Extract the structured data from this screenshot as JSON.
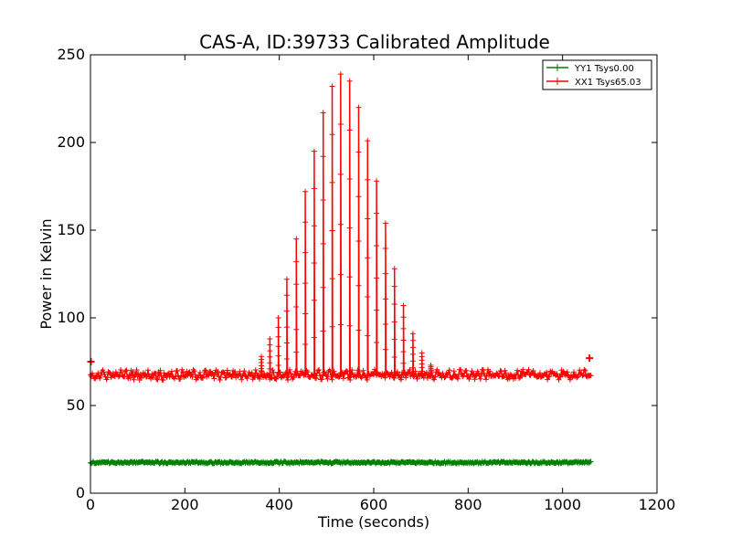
{
  "chart_data": {
    "type": "line",
    "title": "CAS-A, ID:39733 Calibrated Amplitude",
    "xlabel": "Time (seconds)",
    "ylabel": "Power in Kelvin",
    "xlim": [
      0,
      1200
    ],
    "ylim": [
      0,
      250
    ],
    "xticks": [
      0,
      200,
      400,
      600,
      800,
      1000,
      1200
    ],
    "yticks": [
      0,
      50,
      100,
      150,
      200,
      250
    ],
    "grid": false,
    "legend_position": "top-right",
    "series": [
      {
        "name": "YY1 Tsys0.00",
        "color": "#008000",
        "marker": "+",
        "x_range": [
          0,
          1060
        ],
        "sample_step": 2,
        "baseline": 17.5,
        "noise_amplitude": 0.6,
        "peaks": []
      },
      {
        "name": "XX1 Tsys65.03",
        "color": "#ff0000",
        "marker": "+",
        "x_range": [
          0,
          1060
        ],
        "sample_step": 2,
        "baseline": 67.5,
        "noise_amplitude": 2,
        "ripple_period": 12,
        "peaks": [
          {
            "x": 362,
            "y": 78
          },
          {
            "x": 380,
            "y": 88
          },
          {
            "x": 398,
            "y": 100
          },
          {
            "x": 416,
            "y": 122
          },
          {
            "x": 436,
            "y": 145
          },
          {
            "x": 455,
            "y": 172
          },
          {
            "x": 474,
            "y": 195
          },
          {
            "x": 493,
            "y": 217
          },
          {
            "x": 512,
            "y": 232
          },
          {
            "x": 530,
            "y": 239
          },
          {
            "x": 549,
            "y": 235
          },
          {
            "x": 568,
            "y": 220
          },
          {
            "x": 587,
            "y": 201
          },
          {
            "x": 606,
            "y": 178
          },
          {
            "x": 625,
            "y": 154
          },
          {
            "x": 644,
            "y": 128
          },
          {
            "x": 663,
            "y": 107
          },
          {
            "x": 683,
            "y": 91
          },
          {
            "x": 702,
            "y": 80
          },
          {
            "x": 721,
            "y": 73
          }
        ],
        "endpoints": [
          {
            "x": 1,
            "y": 75
          },
          {
            "x": 1057,
            "y": 77
          }
        ]
      }
    ]
  }
}
